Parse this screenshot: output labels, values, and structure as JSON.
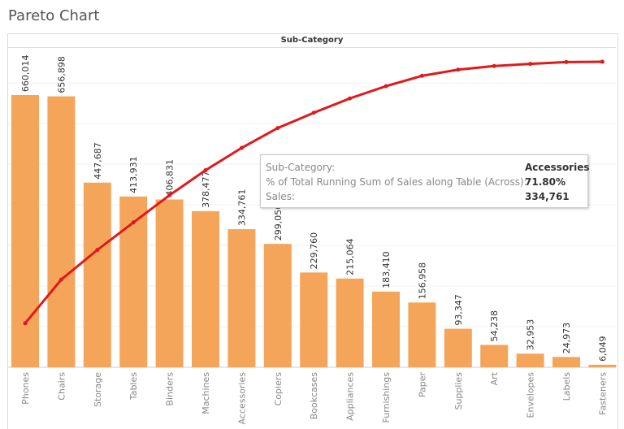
{
  "title": "Pareto Chart",
  "header": "Sub-Category",
  "colors": {
    "bar": "#f5a55a",
    "line": "#e0191b"
  },
  "chart_data": {
    "type": "bar+line",
    "xlabel": "Sub-Category",
    "categories": [
      "Phones",
      "Chairs",
      "Storage",
      "Tables",
      "Binders",
      "Machines",
      "Accessories",
      "Copiers",
      "Bookcases",
      "Appliances",
      "Furnishings",
      "Paper",
      "Supplies",
      "Art",
      "Envelopes",
      "Labels",
      "Fasteners"
    ],
    "series": [
      {
        "type": "bar",
        "values": [
          660014,
          656898,
          447687,
          413931,
          406831,
          378477,
          334761,
          299056,
          229760,
          215064,
          183410,
          156958,
          93347,
          54238,
          32953,
          24973,
          6049
        ],
        "labels": [
          "660,014",
          "656,898",
          "447,687",
          "413,931",
          "406,831",
          "378,477",
          "334,761",
          "299,056",
          "229,760",
          "215,064",
          "183,410",
          "156,958",
          "93,347",
          "54,238",
          "32,953",
          "24,973",
          "6,049"
        ]
      },
      {
        "type": "line",
        "measure": "% of Total Running Sum of Sales along Table (Across)",
        "values": [
          14.4,
          28.7,
          38.4,
          47.4,
          56.3,
          64.5,
          71.8,
          78.3,
          83.3,
          88.0,
          92.0,
          95.4,
          97.4,
          98.6,
          99.3,
          99.9,
          100
        ]
      }
    ],
    "grid": true
  },
  "tooltip": {
    "rows": [
      {
        "label": "Sub-Category:",
        "value": "Accessories"
      },
      {
        "label": "% of Total Running Sum of Sales along Table (Across):",
        "value": "71.80%"
      },
      {
        "label": "Sales:",
        "value": "334,761"
      }
    ]
  }
}
